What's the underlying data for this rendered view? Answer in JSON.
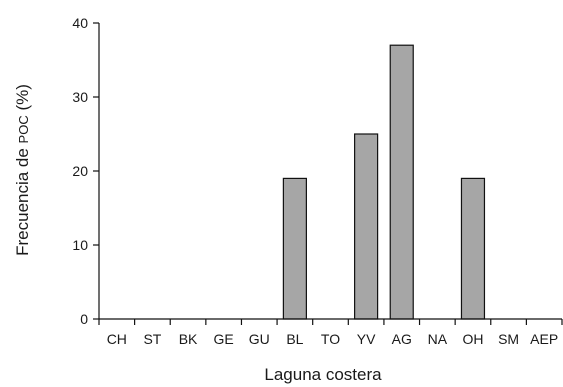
{
  "chart_data": {
    "type": "bar",
    "title": "",
    "xlabel": "Laguna costera",
    "ylabel_main": "Frecuencia de ",
    "ylabel_small": "POC",
    "ylabel_tail": " (%)",
    "categories": [
      "CH",
      "ST",
      "BK",
      "GE",
      "GU",
      "BL",
      "TO",
      "YV",
      "AG",
      "NA",
      "OH",
      "SM",
      "AEP"
    ],
    "values": [
      0,
      0,
      0,
      0,
      0,
      19,
      0,
      25,
      37,
      0,
      19,
      0,
      0
    ],
    "ylim": [
      0,
      40
    ],
    "yticks": [
      0,
      10,
      20,
      30,
      40
    ],
    "grid": false,
    "bar_color": "#a6a6a6"
  }
}
